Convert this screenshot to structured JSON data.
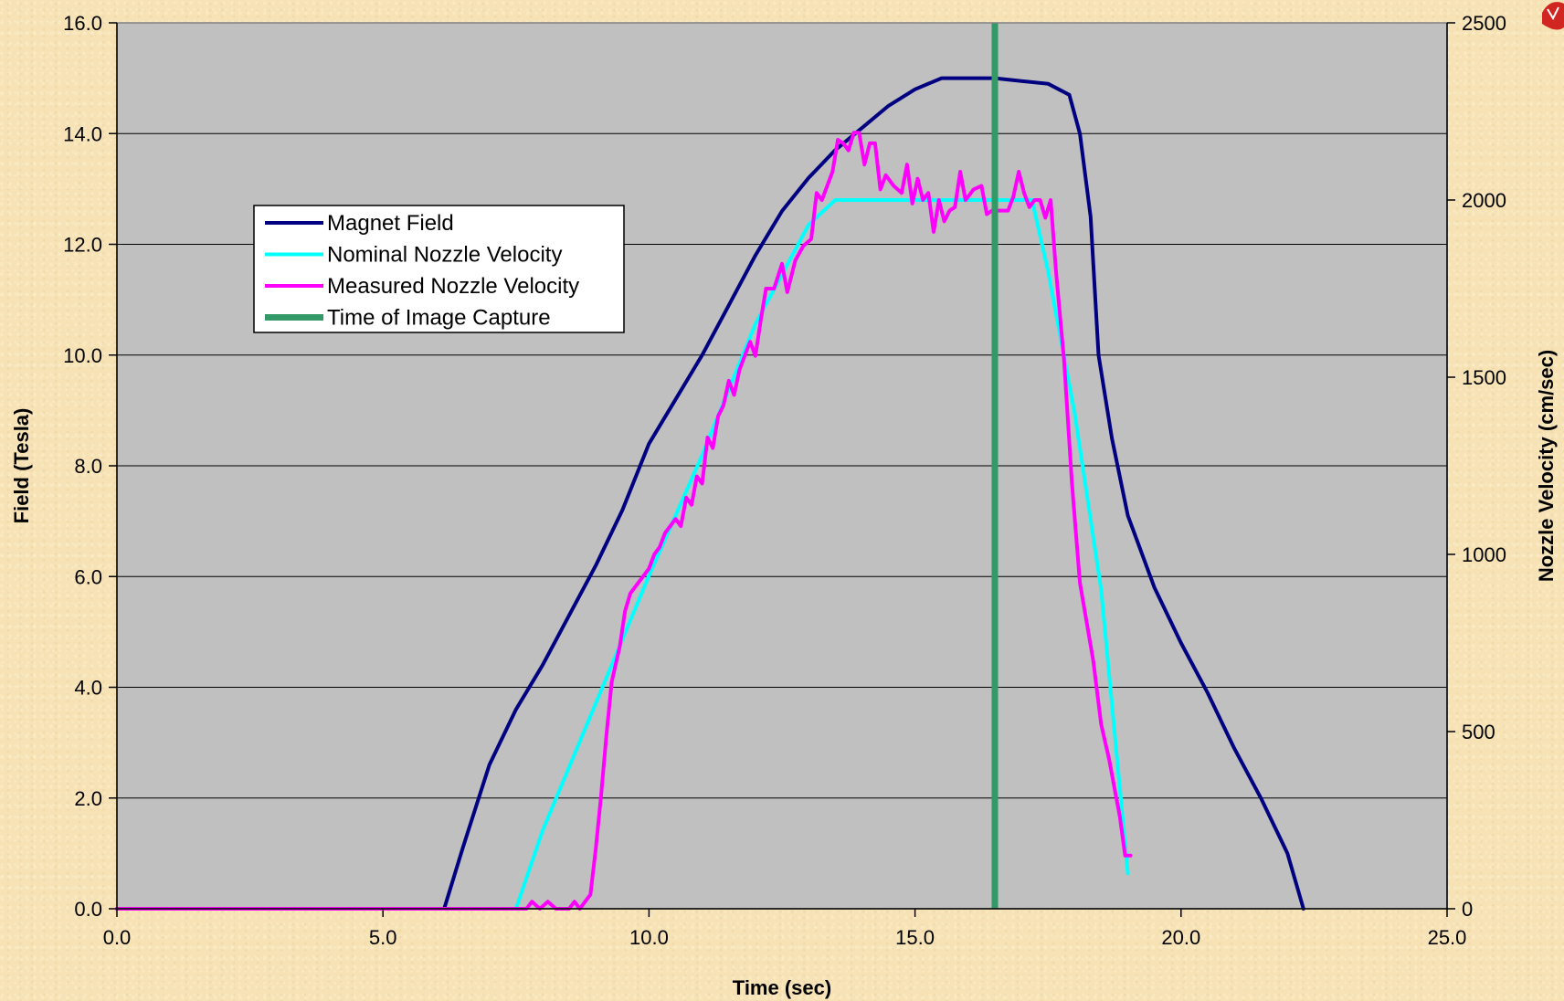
{
  "chart_data": {
    "type": "line",
    "xlabel": "Time (sec)",
    "ylabel": "Field (Tesla)",
    "y2label": "Nozzle Velocity (cm/sec)",
    "xlim": [
      0,
      25
    ],
    "ylim": [
      0,
      16
    ],
    "y2lim": [
      0,
      2500
    ],
    "x_ticks": [
      "0.0",
      "5.0",
      "10.0",
      "15.0",
      "20.0",
      "25.0"
    ],
    "y_ticks": [
      "0.0",
      "2.0",
      "4.0",
      "6.0",
      "8.0",
      "10.0",
      "12.0",
      "14.0",
      "16.0"
    ],
    "y2_ticks": [
      "0",
      "500",
      "1000",
      "1500",
      "2000",
      "2500"
    ],
    "grid": true,
    "legend_position": "upper-left",
    "plot_background": "#c0c0c0",
    "series": [
      {
        "name": "Magnet Field",
        "axis": "left",
        "color": "#000080",
        "points": [
          [
            0,
            0
          ],
          [
            6.15,
            0
          ],
          [
            6.5,
            1.1
          ],
          [
            7.0,
            2.6
          ],
          [
            7.5,
            3.6
          ],
          [
            8.0,
            4.4
          ],
          [
            8.5,
            5.3
          ],
          [
            9.0,
            6.2
          ],
          [
            9.5,
            7.2
          ],
          [
            10.0,
            8.4
          ],
          [
            10.5,
            9.2
          ],
          [
            11.0,
            10.0
          ],
          [
            11.5,
            10.9
          ],
          [
            12.0,
            11.8
          ],
          [
            12.5,
            12.6
          ],
          [
            13.0,
            13.2
          ],
          [
            13.5,
            13.7
          ],
          [
            14.0,
            14.1
          ],
          [
            14.5,
            14.5
          ],
          [
            15.0,
            14.8
          ],
          [
            15.5,
            15.0
          ],
          [
            16.0,
            15.0
          ],
          [
            16.5,
            15.0
          ],
          [
            17.0,
            14.95
          ],
          [
            17.5,
            14.9
          ],
          [
            17.9,
            14.7
          ],
          [
            18.1,
            14.0
          ],
          [
            18.3,
            12.5
          ],
          [
            18.45,
            10.0
          ],
          [
            18.7,
            8.5
          ],
          [
            19.0,
            7.1
          ],
          [
            19.5,
            5.8
          ],
          [
            20.0,
            4.8
          ],
          [
            20.5,
            3.9
          ],
          [
            21.0,
            2.9
          ],
          [
            21.5,
            2.0
          ],
          [
            22.0,
            1.0
          ],
          [
            22.3,
            0
          ]
        ]
      },
      {
        "name": "Nominal Nozzle Velocity",
        "axis": "right",
        "color": "#00ffff",
        "points": [
          [
            0,
            0
          ],
          [
            7.5,
            0
          ],
          [
            8.0,
            220
          ],
          [
            9.0,
            580
          ],
          [
            10.0,
            940
          ],
          [
            11.0,
            1280
          ],
          [
            12.0,
            1650
          ],
          [
            13.0,
            1930
          ],
          [
            13.5,
            2000
          ],
          [
            17.2,
            2000
          ],
          [
            17.5,
            1800
          ],
          [
            18.0,
            1400
          ],
          [
            18.5,
            900
          ],
          [
            19.0,
            100
          ]
        ]
      },
      {
        "name": "Measured Nozzle Velocity",
        "axis": "right",
        "color": "#ff00ff",
        "points": [
          [
            0,
            0
          ],
          [
            7.7,
            0
          ],
          [
            7.8,
            20
          ],
          [
            7.95,
            0
          ],
          [
            8.1,
            20
          ],
          [
            8.25,
            0
          ],
          [
            8.5,
            0
          ],
          [
            8.6,
            20
          ],
          [
            8.7,
            0
          ],
          [
            8.8,
            20
          ],
          [
            8.9,
            40
          ],
          [
            9.0,
            170
          ],
          [
            9.1,
            320
          ],
          [
            9.2,
            490
          ],
          [
            9.3,
            640
          ],
          [
            9.45,
            740
          ],
          [
            9.55,
            840
          ],
          [
            9.65,
            890
          ],
          [
            9.75,
            910
          ],
          [
            9.9,
            940
          ],
          [
            10.0,
            960
          ],
          [
            10.1,
            1000
          ],
          [
            10.2,
            1020
          ],
          [
            10.3,
            1060
          ],
          [
            10.4,
            1080
          ],
          [
            10.5,
            1100
          ],
          [
            10.6,
            1080
          ],
          [
            10.7,
            1160
          ],
          [
            10.8,
            1140
          ],
          [
            10.9,
            1220
          ],
          [
            11.0,
            1200
          ],
          [
            11.1,
            1330
          ],
          [
            11.2,
            1300
          ],
          [
            11.3,
            1390
          ],
          [
            11.4,
            1420
          ],
          [
            11.5,
            1490
          ],
          [
            11.6,
            1450
          ],
          [
            11.7,
            1520
          ],
          [
            11.8,
            1560
          ],
          [
            11.9,
            1600
          ],
          [
            12.0,
            1560
          ],
          [
            12.1,
            1660
          ],
          [
            12.2,
            1750
          ],
          [
            12.35,
            1750
          ],
          [
            12.5,
            1820
          ],
          [
            12.6,
            1740
          ],
          [
            12.75,
            1830
          ],
          [
            12.9,
            1870
          ],
          [
            13.05,
            1890
          ],
          [
            13.15,
            2020
          ],
          [
            13.25,
            2000
          ],
          [
            13.45,
            2080
          ],
          [
            13.55,
            2170
          ],
          [
            13.65,
            2160
          ],
          [
            13.75,
            2140
          ],
          [
            13.85,
            2190
          ],
          [
            13.95,
            2190
          ],
          [
            14.05,
            2100
          ],
          [
            14.15,
            2160
          ],
          [
            14.25,
            2160
          ],
          [
            14.35,
            2030
          ],
          [
            14.45,
            2070
          ],
          [
            14.6,
            2040
          ],
          [
            14.75,
            2020
          ],
          [
            14.85,
            2100
          ],
          [
            14.95,
            1990
          ],
          [
            15.05,
            2060
          ],
          [
            15.15,
            2000
          ],
          [
            15.25,
            2020
          ],
          [
            15.35,
            1910
          ],
          [
            15.45,
            2000
          ],
          [
            15.55,
            1940
          ],
          [
            15.65,
            1970
          ],
          [
            15.75,
            1980
          ],
          [
            15.85,
            2080
          ],
          [
            15.95,
            2000
          ],
          [
            16.1,
            2030
          ],
          [
            16.25,
            2040
          ],
          [
            16.35,
            1960
          ],
          [
            16.45,
            1970
          ],
          [
            16.55,
            1970
          ],
          [
            16.75,
            1970
          ],
          [
            16.85,
            2010
          ],
          [
            16.95,
            2080
          ],
          [
            17.05,
            2020
          ],
          [
            17.15,
            1980
          ],
          [
            17.25,
            2000
          ],
          [
            17.35,
            2000
          ],
          [
            17.45,
            1950
          ],
          [
            17.55,
            2000
          ],
          [
            17.65,
            1800
          ],
          [
            17.8,
            1550
          ],
          [
            17.95,
            1200
          ],
          [
            18.1,
            920
          ],
          [
            18.35,
            700
          ],
          [
            18.5,
            520
          ],
          [
            18.65,
            420
          ],
          [
            18.85,
            260
          ],
          [
            18.95,
            150
          ],
          [
            19.05,
            150
          ]
        ]
      },
      {
        "name": "Time of Image Capture",
        "axis": "left",
        "color": "#339966",
        "points": [
          [
            16.5,
            0
          ],
          [
            16.5,
            16
          ]
        ]
      }
    ]
  },
  "brand_colors": {
    "page_background": "#f6e2b4",
    "plot_background": "#c0c0c0"
  }
}
